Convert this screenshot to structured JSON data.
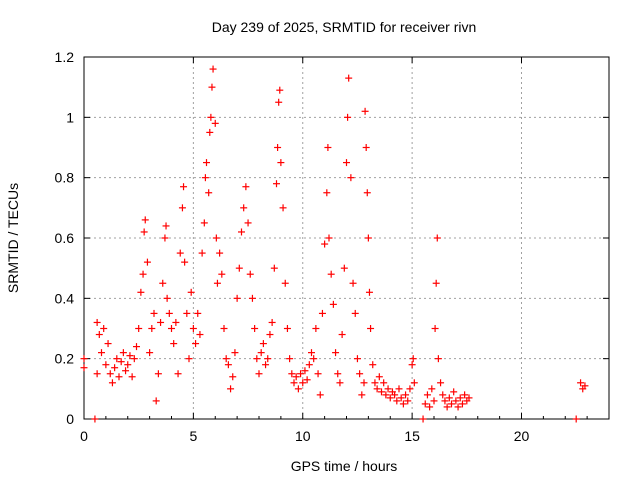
{
  "chart_data": {
    "type": "scatter",
    "title": "Day 239 of 2025, SRMTID for receiver rivn",
    "xlabel": "GPS time / hours",
    "ylabel": "SRMTID / TECUs",
    "xlim": [
      0,
      24
    ],
    "ylim": [
      0,
      1.2
    ],
    "grid": true,
    "marker": "+",
    "marker_color": "#ff0000",
    "x_ticks": [
      0,
      5,
      10,
      15,
      20
    ],
    "x_tick_labels": [
      "0",
      "5",
      "10",
      "15",
      "20"
    ],
    "y_ticks": [
      0,
      0.2,
      0.4,
      0.6,
      0.8,
      1.0,
      1.2
    ],
    "y_tick_labels": [
      "0",
      "0.2",
      "0.4",
      "0.6",
      "0.8",
      "1",
      "1.2"
    ],
    "series": [
      {
        "name": "SRMTID",
        "points": [
          [
            0.0,
            0.17
          ],
          [
            0.0,
            0.2
          ],
          [
            0.5,
            0.0
          ],
          [
            0.6,
            0.15
          ],
          [
            0.6,
            0.32
          ],
          [
            0.7,
            0.28
          ],
          [
            0.8,
            0.22
          ],
          [
            0.9,
            0.3
          ],
          [
            1.0,
            0.18
          ],
          [
            1.1,
            0.25
          ],
          [
            1.2,
            0.15
          ],
          [
            1.3,
            0.12
          ],
          [
            1.4,
            0.17
          ],
          [
            1.5,
            0.2
          ],
          [
            1.6,
            0.14
          ],
          [
            1.7,
            0.19
          ],
          [
            1.8,
            0.22
          ],
          [
            1.9,
            0.16
          ],
          [
            2.0,
            0.18
          ],
          [
            2.1,
            0.21
          ],
          [
            2.2,
            0.14
          ],
          [
            2.3,
            0.2
          ],
          [
            2.4,
            0.24
          ],
          [
            2.5,
            0.3
          ],
          [
            2.6,
            0.42
          ],
          [
            2.7,
            0.48
          ],
          [
            2.75,
            0.62
          ],
          [
            2.8,
            0.66
          ],
          [
            2.9,
            0.52
          ],
          [
            3.0,
            0.22
          ],
          [
            3.1,
            0.3
          ],
          [
            3.2,
            0.35
          ],
          [
            3.3,
            0.06
          ],
          [
            3.4,
            0.15
          ],
          [
            3.5,
            0.32
          ],
          [
            3.6,
            0.45
          ],
          [
            3.7,
            0.6
          ],
          [
            3.75,
            0.64
          ],
          [
            3.8,
            0.4
          ],
          [
            3.9,
            0.35
          ],
          [
            4.0,
            0.3
          ],
          [
            4.1,
            0.25
          ],
          [
            4.2,
            0.32
          ],
          [
            4.3,
            0.15
          ],
          [
            4.4,
            0.55
          ],
          [
            4.5,
            0.7
          ],
          [
            4.55,
            0.77
          ],
          [
            4.6,
            0.52
          ],
          [
            4.7,
            0.35
          ],
          [
            4.8,
            0.2
          ],
          [
            4.9,
            0.42
          ],
          [
            5.0,
            0.3
          ],
          [
            5.1,
            0.25
          ],
          [
            5.2,
            0.35
          ],
          [
            5.3,
            0.28
          ],
          [
            5.4,
            0.55
          ],
          [
            5.5,
            0.65
          ],
          [
            5.55,
            0.8
          ],
          [
            5.6,
            0.85
          ],
          [
            5.7,
            0.75
          ],
          [
            5.75,
            0.95
          ],
          [
            5.8,
            1.0
          ],
          [
            5.85,
            1.1
          ],
          [
            5.9,
            1.16
          ],
          [
            6.0,
            0.98
          ],
          [
            6.05,
            0.6
          ],
          [
            6.1,
            0.45
          ],
          [
            6.2,
            0.55
          ],
          [
            6.3,
            0.48
          ],
          [
            6.4,
            0.3
          ],
          [
            6.5,
            0.2
          ],
          [
            6.6,
            0.18
          ],
          [
            6.7,
            0.1
          ],
          [
            6.8,
            0.14
          ],
          [
            6.9,
            0.22
          ],
          [
            7.0,
            0.4
          ],
          [
            7.1,
            0.5
          ],
          [
            7.2,
            0.62
          ],
          [
            7.3,
            0.7
          ],
          [
            7.4,
            0.77
          ],
          [
            7.5,
            0.65
          ],
          [
            7.6,
            0.48
          ],
          [
            7.7,
            0.4
          ],
          [
            7.8,
            0.3
          ],
          [
            7.9,
            0.2
          ],
          [
            8.0,
            0.15
          ],
          [
            8.1,
            0.22
          ],
          [
            8.2,
            0.25
          ],
          [
            8.3,
            0.18
          ],
          [
            8.4,
            0.2
          ],
          [
            8.5,
            0.28
          ],
          [
            8.6,
            0.32
          ],
          [
            8.7,
            0.5
          ],
          [
            8.8,
            0.78
          ],
          [
            8.85,
            0.9
          ],
          [
            8.9,
            1.05
          ],
          [
            8.95,
            1.09
          ],
          [
            9.0,
            0.85
          ],
          [
            9.1,
            0.7
          ],
          [
            9.2,
            0.45
          ],
          [
            9.3,
            0.3
          ],
          [
            9.4,
            0.2
          ],
          [
            9.5,
            0.15
          ],
          [
            9.6,
            0.12
          ],
          [
            9.7,
            0.14
          ],
          [
            9.8,
            0.1
          ],
          [
            9.9,
            0.15
          ],
          [
            10.0,
            0.12
          ],
          [
            10.1,
            0.16
          ],
          [
            10.2,
            0.13
          ],
          [
            10.3,
            0.18
          ],
          [
            10.4,
            0.22
          ],
          [
            10.5,
            0.2
          ],
          [
            10.6,
            0.3
          ],
          [
            10.7,
            0.15
          ],
          [
            10.8,
            0.08
          ],
          [
            10.9,
            0.35
          ],
          [
            11.0,
            0.58
          ],
          [
            11.1,
            0.75
          ],
          [
            11.15,
            0.9
          ],
          [
            11.2,
            0.6
          ],
          [
            11.3,
            0.48
          ],
          [
            11.4,
            0.38
          ],
          [
            11.5,
            0.22
          ],
          [
            11.6,
            0.15
          ],
          [
            11.7,
            0.12
          ],
          [
            11.8,
            0.28
          ],
          [
            11.9,
            0.5
          ],
          [
            12.0,
            0.85
          ],
          [
            12.05,
            1.0
          ],
          [
            12.1,
            1.13
          ],
          [
            12.2,
            0.8
          ],
          [
            12.3,
            0.45
          ],
          [
            12.4,
            0.35
          ],
          [
            12.5,
            0.2
          ],
          [
            12.6,
            0.15
          ],
          [
            12.7,
            0.08
          ],
          [
            12.8,
            0.12
          ],
          [
            12.85,
            1.02
          ],
          [
            12.9,
            0.9
          ],
          [
            12.95,
            0.75
          ],
          [
            13.0,
            0.6
          ],
          [
            13.05,
            0.42
          ],
          [
            13.1,
            0.3
          ],
          [
            13.2,
            0.18
          ],
          [
            13.3,
            0.12
          ],
          [
            13.4,
            0.1
          ],
          [
            13.5,
            0.14
          ],
          [
            13.6,
            0.09
          ],
          [
            13.7,
            0.12
          ],
          [
            13.8,
            0.08
          ],
          [
            13.9,
            0.1
          ],
          [
            14.0,
            0.07
          ],
          [
            14.1,
            0.09
          ],
          [
            14.2,
            0.08
          ],
          [
            14.3,
            0.06
          ],
          [
            14.4,
            0.1
          ],
          [
            14.5,
            0.07
          ],
          [
            14.6,
            0.05
          ],
          [
            14.7,
            0.08
          ],
          [
            14.8,
            0.06
          ],
          [
            14.9,
            0.1
          ],
          [
            15.0,
            0.18
          ],
          [
            15.05,
            0.2
          ],
          [
            15.1,
            0.12
          ],
          [
            15.5,
            0.0
          ],
          [
            15.6,
            0.05
          ],
          [
            15.7,
            0.08
          ],
          [
            15.8,
            0.04
          ],
          [
            15.9,
            0.1
          ],
          [
            16.0,
            0.06
          ],
          [
            16.05,
            0.3
          ],
          [
            16.1,
            0.45
          ],
          [
            16.15,
            0.6
          ],
          [
            16.2,
            0.2
          ],
          [
            16.3,
            0.12
          ],
          [
            16.4,
            0.08
          ],
          [
            16.5,
            0.06
          ],
          [
            16.6,
            0.04
          ],
          [
            16.7,
            0.07
          ],
          [
            16.8,
            0.05
          ],
          [
            16.9,
            0.09
          ],
          [
            17.0,
            0.06
          ],
          [
            17.1,
            0.04
          ],
          [
            17.2,
            0.07
          ],
          [
            17.3,
            0.05
          ],
          [
            17.4,
            0.08
          ],
          [
            17.5,
            0.06
          ],
          [
            17.6,
            0.07
          ],
          [
            22.5,
            0.0
          ],
          [
            22.7,
            0.12
          ],
          [
            22.8,
            0.1
          ],
          [
            22.9,
            0.11
          ]
        ]
      }
    ]
  }
}
